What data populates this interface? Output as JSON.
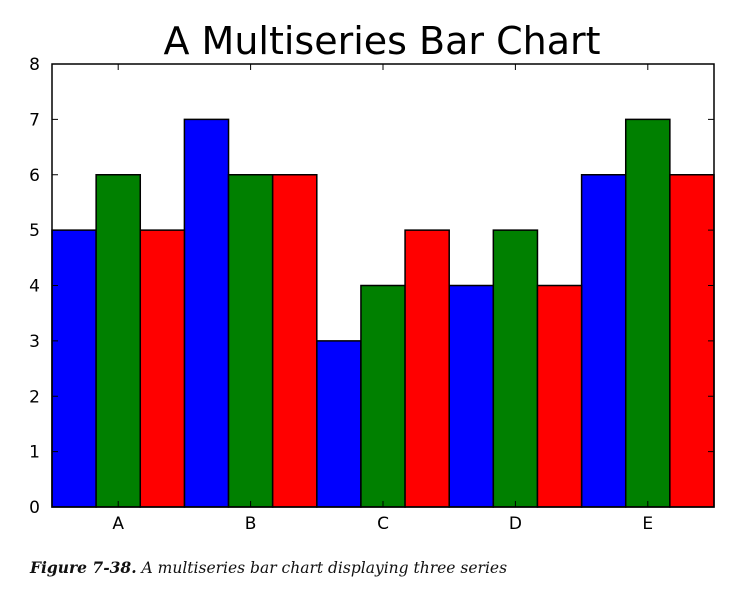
{
  "caption": {
    "label": "Figure 7-38.",
    "text": "A multiseries bar chart displaying three series"
  },
  "chart_data": {
    "type": "bar",
    "title": "A Multiseries Bar Chart",
    "xlabel": "",
    "ylabel": "",
    "categories": [
      "A",
      "B",
      "C",
      "D",
      "E"
    ],
    "ylim": [
      0,
      8
    ],
    "yticks": [
      0,
      1,
      2,
      3,
      4,
      5,
      6,
      7,
      8
    ],
    "grid": false,
    "legend": "none",
    "series": [
      {
        "values": [
          5,
          7,
          3,
          4,
          6
        ],
        "color": "#0000ff"
      },
      {
        "values": [
          6,
          6,
          4,
          5,
          7
        ],
        "color": "#008000"
      },
      {
        "values": [
          5,
          6,
          5,
          4,
          6
        ],
        "color": "#ff0000"
      }
    ]
  }
}
